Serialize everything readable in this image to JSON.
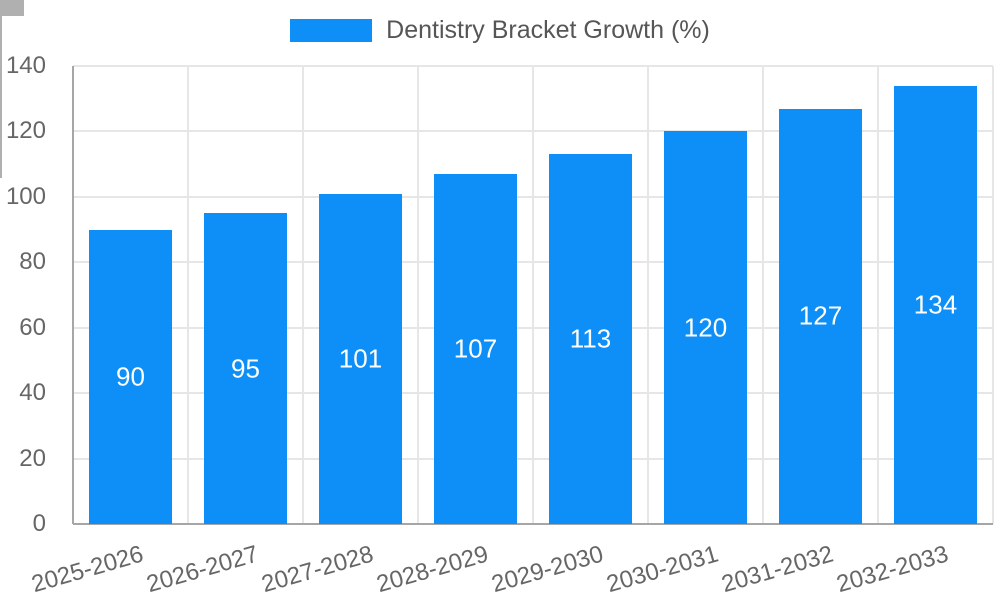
{
  "chart_data": {
    "type": "bar",
    "title": "",
    "legend": {
      "position": "top",
      "label": "Dentistry Bracket Growth (%)"
    },
    "categories": [
      "2025-2026",
      "2026-2027",
      "2027-2028",
      "2028-2029",
      "2029-2030",
      "2030-2031",
      "2031-2032",
      "2032-2033"
    ],
    "values": [
      90,
      95,
      101,
      107,
      113,
      120,
      127,
      134
    ],
    "value_labels_shown": true,
    "value_label_position": "inside-center",
    "xlabel": "",
    "ylabel": "",
    "ylim": [
      0,
      140
    ],
    "yticks": [
      0,
      20,
      40,
      60,
      80,
      100,
      120,
      140
    ],
    "grid": true,
    "colors": {
      "bar": "#0d8ff7",
      "value_label": "#ffffff",
      "axis_label": "#666666",
      "legend_label": "#565656",
      "gridline": "#e6e6e6",
      "axis_line": "#a6a6a6",
      "background": "#ffffff"
    }
  }
}
